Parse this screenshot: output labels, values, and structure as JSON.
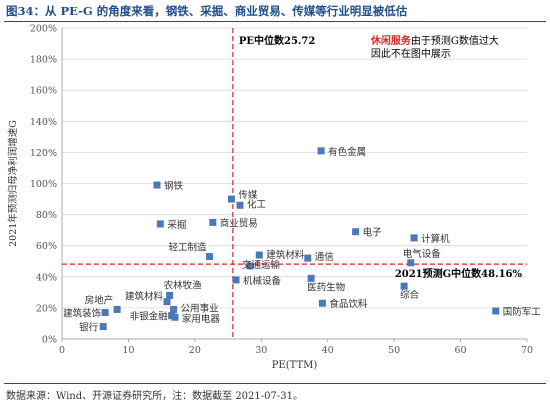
{
  "title": "图34：从 PE-G 的角度来看，钢铁、采掘、商业贸易、传媒等行业明显被低估",
  "source": "数据来源：Wind、开源证券研究所，注：数据截至 2021-07-31。",
  "chart_data": {
    "type": "scatter",
    "xlabel": "PE(TTM)",
    "ylabel": "2021年预测归母净利润增速G",
    "xlim": [
      0,
      70
    ],
    "ylim": [
      0,
      200
    ],
    "x_ticks": [
      0,
      10,
      20,
      30,
      40,
      50,
      60,
      70
    ],
    "y_ticks": [
      0,
      20,
      40,
      60,
      80,
      100,
      120,
      140,
      160,
      180,
      200
    ],
    "y_tick_suffix": "%",
    "marker_color": "#4a78b8",
    "median_line_color": "#d62728",
    "pe_median": 25.72,
    "g_median": 48.16,
    "pe_median_label": "PE中位数25.72",
    "g_median_label": "2021预测G中位数48.16%",
    "note_highlight": "休闲服务",
    "note_text_1": "由于预测G数值过大",
    "note_text_2": "因此不在图中展示",
    "points": [
      {
        "label": "有色金属",
        "x": 39.0,
        "y": 121
      },
      {
        "label": "钢铁",
        "x": 14.3,
        "y": 99
      },
      {
        "label": "传媒",
        "x": 25.5,
        "y": 90
      },
      {
        "label": "化工",
        "x": 26.8,
        "y": 86
      },
      {
        "label": "采掘",
        "x": 14.8,
        "y": 74
      },
      {
        "label": "商业贸易",
        "x": 22.7,
        "y": 75
      },
      {
        "label": "电子",
        "x": 44.2,
        "y": 69
      },
      {
        "label": "计算机",
        "x": 53.0,
        "y": 65
      },
      {
        "label": "轻工制造",
        "x": 22.2,
        "y": 53
      },
      {
        "label": "通信",
        "x": 37.0,
        "y": 52
      },
      {
        "label": "建筑材料",
        "x": 29.7,
        "y": 54
      },
      {
        "label": "交通运输",
        "x": 28.3,
        "y": 47
      },
      {
        "label": "电气设备",
        "x": 52.5,
        "y": 49
      },
      {
        "label": "机械设备",
        "x": 26.2,
        "y": 38
      },
      {
        "label": "医药生物",
        "x": 37.5,
        "y": 39
      },
      {
        "label": "综合",
        "x": 51.5,
        "y": 34
      },
      {
        "label": "农林牧渔",
        "x": 16.2,
        "y": 28
      },
      {
        "label": "建筑材料",
        "x": 15.8,
        "y": 24
      },
      {
        "label": "房地产",
        "x": 8.3,
        "y": 19
      },
      {
        "label": "建筑装饰",
        "x": 6.5,
        "y": 17
      },
      {
        "label": "公用事业",
        "x": 16.8,
        "y": 19
      },
      {
        "label": "非银金融",
        "x": 16.5,
        "y": 15
      },
      {
        "label": "家用电器",
        "x": 17.0,
        "y": 14
      },
      {
        "label": "食品饮料",
        "x": 39.2,
        "y": 23
      },
      {
        "label": "银行",
        "x": 6.2,
        "y": 8
      },
      {
        "label": "国防军工",
        "x": 65.3,
        "y": 18
      }
    ]
  }
}
